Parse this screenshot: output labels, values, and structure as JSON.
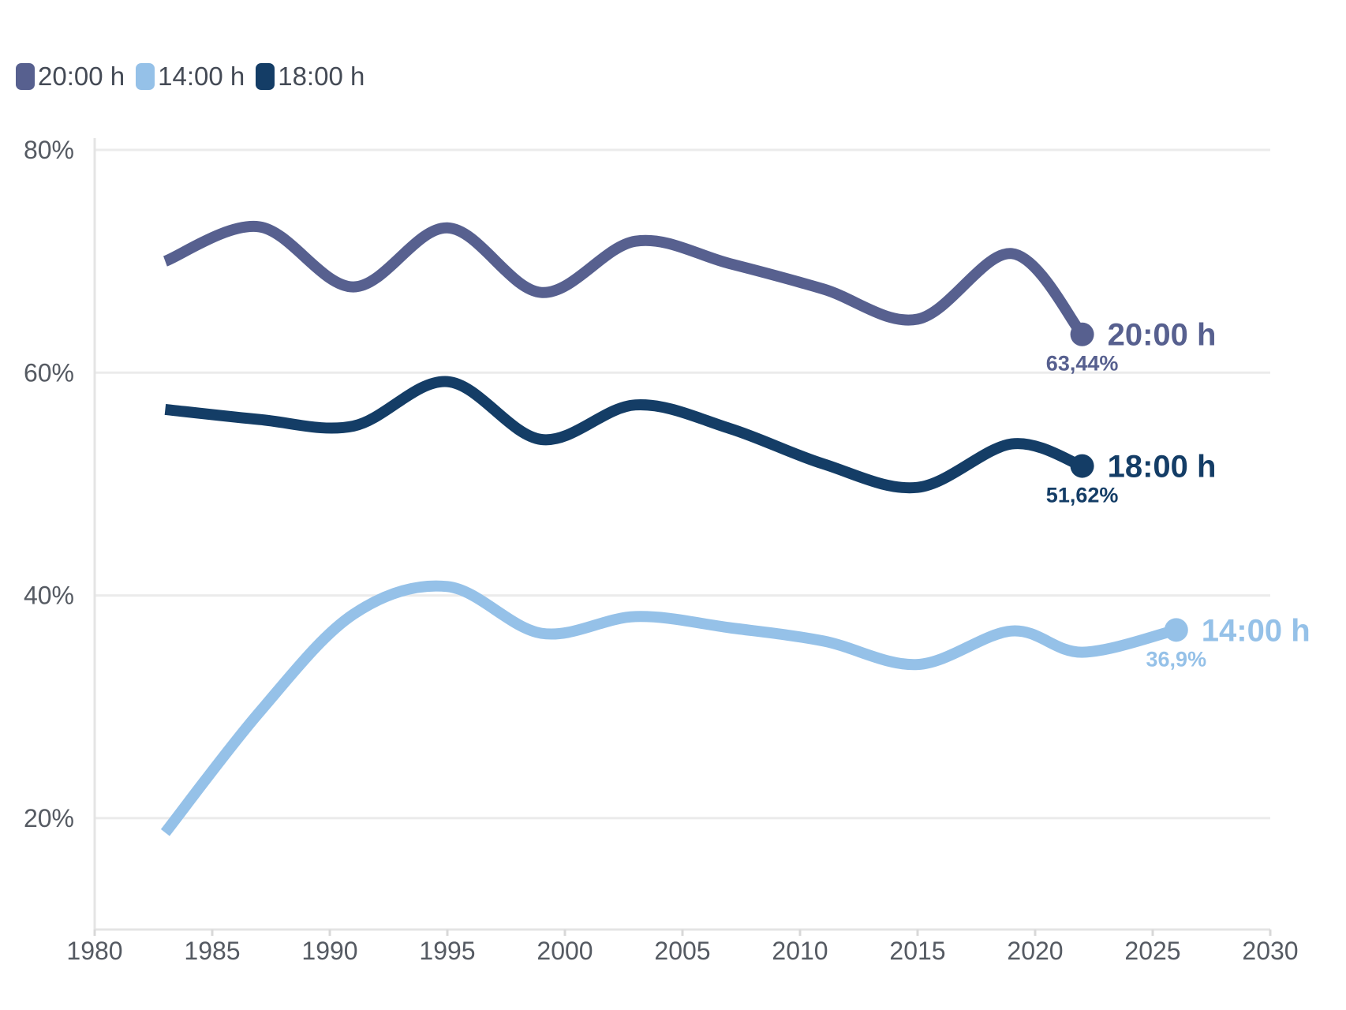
{
  "chart_data": {
    "type": "line",
    "title": "",
    "xlabel": "",
    "ylabel": "",
    "xlim": [
      1980,
      2030
    ],
    "ylim": [
      10,
      80
    ],
    "x_ticks": [
      1980,
      1985,
      1990,
      1995,
      2000,
      2005,
      2010,
      2015,
      2020,
      2025,
      2030
    ],
    "y_ticks": [
      {
        "value": 20,
        "label": "20%"
      },
      {
        "value": 40,
        "label": "40%"
      },
      {
        "value": 60,
        "label": "60%"
      },
      {
        "value": 80,
        "label": "80%"
      }
    ],
    "grid": "horizontal",
    "legend_position": "top-left",
    "legend": [
      {
        "name": "20:00 h",
        "color": "#57608f"
      },
      {
        "name": "14:00 h",
        "color": "#95c1e8"
      },
      {
        "name": "18:00 h",
        "color": "#143d66"
      }
    ],
    "series": [
      {
        "name": "20:00 h",
        "color": "#57608f",
        "end_label": "20:00 h",
        "end_value_label": "63,44%",
        "points": [
          [
            1983,
            70.0
          ],
          [
            1987,
            73.1
          ],
          [
            1991,
            67.7
          ],
          [
            1995,
            73.0
          ],
          [
            1999,
            67.2
          ],
          [
            2003,
            71.8
          ],
          [
            2007,
            69.8
          ],
          [
            2011,
            67.5
          ],
          [
            2015,
            64.8
          ],
          [
            2019,
            70.7
          ],
          [
            2022,
            63.44
          ]
        ]
      },
      {
        "name": "18:00 h",
        "color": "#143d66",
        "end_label": "18:00 h",
        "end_value_label": "51,62%",
        "points": [
          [
            1983,
            56.7
          ],
          [
            1987,
            55.8
          ],
          [
            1991,
            55.2
          ],
          [
            1995,
            59.2
          ],
          [
            1999,
            54.0
          ],
          [
            2003,
            57.1
          ],
          [
            2007,
            55.0
          ],
          [
            2011,
            51.8
          ],
          [
            2015,
            49.7
          ],
          [
            2019,
            53.6
          ],
          [
            2022,
            51.62
          ]
        ]
      },
      {
        "name": "14:00 h",
        "color": "#95c1e8",
        "end_label": "14:00 h",
        "end_value_label": "36,9%",
        "points": [
          [
            1983,
            18.7
          ],
          [
            1987,
            29.5
          ],
          [
            1991,
            38.3
          ],
          [
            1995,
            40.8
          ],
          [
            1999,
            36.6
          ],
          [
            2003,
            38.1
          ],
          [
            2007,
            37.1
          ],
          [
            2011,
            35.9
          ],
          [
            2015,
            33.8
          ],
          [
            2019,
            36.8
          ],
          [
            2022,
            34.9
          ],
          [
            2026,
            36.9
          ]
        ]
      }
    ]
  }
}
